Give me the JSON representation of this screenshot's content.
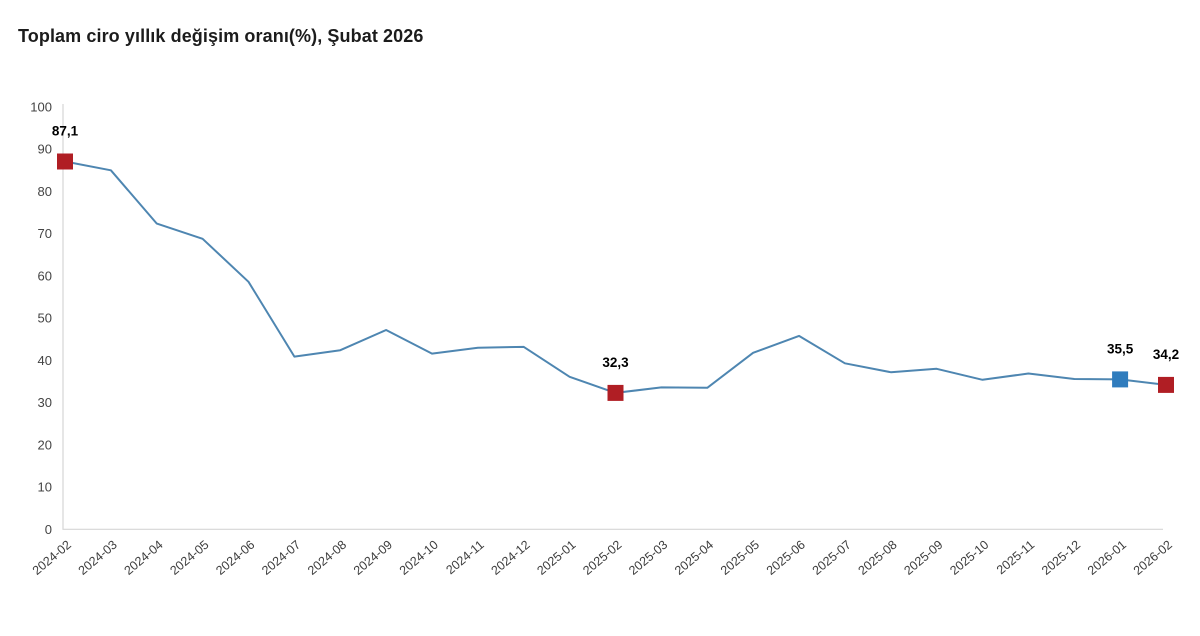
{
  "chart_data": {
    "type": "line",
    "title": "Toplam ciro yıllık değişim oranı(%), Şubat 2026",
    "x": [
      "2024-02",
      "2024-03",
      "2024-04",
      "2024-05",
      "2024-06",
      "2024-07",
      "2024-08",
      "2024-09",
      "2024-10",
      "2024-11",
      "2024-12",
      "2025-01",
      "2025-02",
      "2025-03",
      "2025-04",
      "2025-05",
      "2025-06",
      "2025-07",
      "2025-08",
      "2025-09",
      "2025-10",
      "2025-11",
      "2025-12",
      "2026-01",
      "2026-02"
    ],
    "values": [
      87.1,
      85.0,
      72.4,
      68.8,
      58.6,
      40.9,
      42.4,
      47.2,
      41.6,
      43.0,
      43.2,
      36.1,
      32.3,
      33.6,
      33.5,
      41.8,
      45.8,
      39.3,
      37.2,
      38.0,
      35.4,
      36.9,
      35.6,
      35.5,
      34.2
    ],
    "ylim": [
      0,
      100
    ],
    "ytick_step": 10,
    "yticks": [
      0,
      10,
      20,
      30,
      40,
      50,
      60,
      70,
      80,
      90,
      100
    ],
    "grid": false,
    "legend": "none",
    "xlabel": "",
    "ylabel": "",
    "point_labels": [
      {
        "x": "2024-02",
        "value": 87.1,
        "label": "87,1",
        "marker": "square",
        "color_key": "highlight_red"
      },
      {
        "x": "2025-02",
        "value": 32.3,
        "label": "32,3",
        "marker": "square",
        "color_key": "highlight_red"
      },
      {
        "x": "2026-01",
        "value": 35.5,
        "label": "35,5",
        "marker": "square",
        "color_key": "highlight_blue"
      },
      {
        "x": "2026-02",
        "value": 34.2,
        "label": "34,2",
        "marker": "square",
        "color_key": "highlight_red"
      }
    ],
    "colors": {
      "line": "#4e86b1",
      "highlight_red": "#b01e24",
      "highlight_blue": "#2f7cbd",
      "axis": "#d6d6d6",
      "tick_text": "#444444",
      "title_text": "#1c1c1c",
      "point_label_text": "#000000"
    }
  }
}
